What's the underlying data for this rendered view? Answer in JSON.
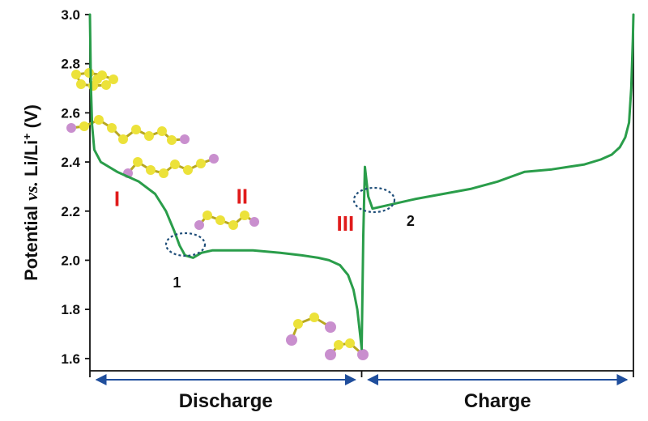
{
  "colors": {
    "curve": "#2a9d4a",
    "region_label": "#e01b1b",
    "arrow": "#1f4e9c",
    "marker": "#1f4e79",
    "sulfur_atom": "#ece23a",
    "lithium_atom": "#c98fce",
    "axis": "#111111"
  },
  "chart_data": {
    "type": "line",
    "title": "",
    "ylabel_parts": {
      "main": "Potential ",
      "vs": "vs.",
      "ref": " Li/Li",
      "sup": "+",
      "unit": " (V)"
    },
    "ylim": [
      1.55,
      3.0
    ],
    "yticks": [
      "1.6",
      "1.8",
      "2.0",
      "2.2",
      "2.4",
      "2.6",
      "2.8",
      "3.0"
    ],
    "xlim": [
      0,
      1
    ],
    "x_tick_marks": [
      0,
      0.5,
      1
    ],
    "grid": false,
    "series": [
      {
        "segment": "discharge",
        "x": [
          0.0,
          0.002,
          0.004,
          0.008,
          0.02,
          0.05,
          0.09,
          0.12,
          0.14,
          0.155,
          0.165,
          0.175,
          0.19,
          0.205,
          0.225,
          0.26,
          0.3,
          0.35,
          0.39,
          0.42,
          0.44,
          0.46,
          0.475,
          0.485,
          0.492,
          0.497,
          0.5
        ],
        "y": [
          3.0,
          2.7,
          2.55,
          2.45,
          2.4,
          2.36,
          2.32,
          2.27,
          2.2,
          2.12,
          2.06,
          2.02,
          2.01,
          2.03,
          2.04,
          2.04,
          2.04,
          2.03,
          2.02,
          2.01,
          2.0,
          1.98,
          1.94,
          1.88,
          1.8,
          1.7,
          1.64
        ]
      },
      {
        "segment": "charge",
        "x": [
          0.5,
          0.503,
          0.506,
          0.512,
          0.52,
          0.54,
          0.6,
          0.65,
          0.7,
          0.75,
          0.8,
          0.85,
          0.88,
          0.91,
          0.94,
          0.96,
          0.975,
          0.985,
          0.992,
          0.996,
          0.999,
          1.0
        ],
        "y": [
          1.64,
          2.1,
          2.38,
          2.26,
          2.21,
          2.22,
          2.25,
          2.27,
          2.29,
          2.32,
          2.36,
          2.37,
          2.38,
          2.39,
          2.41,
          2.43,
          2.46,
          2.5,
          2.56,
          2.7,
          2.9,
          3.0
        ]
      }
    ],
    "annotations": {
      "region_labels": [
        {
          "text": "I",
          "x": 0.05,
          "y": 2.22
        },
        {
          "text": "II",
          "x": 0.28,
          "y": 2.23
        },
        {
          "text": "III",
          "x": 0.47,
          "y": 2.12
        }
      ],
      "marker_labels": [
        {
          "text": "1",
          "x": 0.16,
          "y": 1.89
        },
        {
          "text": "2",
          "x": 0.59,
          "y": 2.14
        }
      ]
    },
    "phases": [
      {
        "name": "Discharge",
        "x_start": 0.0,
        "x_end": 0.5
      },
      {
        "name": "Charge",
        "x_start": 0.5,
        "x_end": 1.0
      }
    ]
  }
}
